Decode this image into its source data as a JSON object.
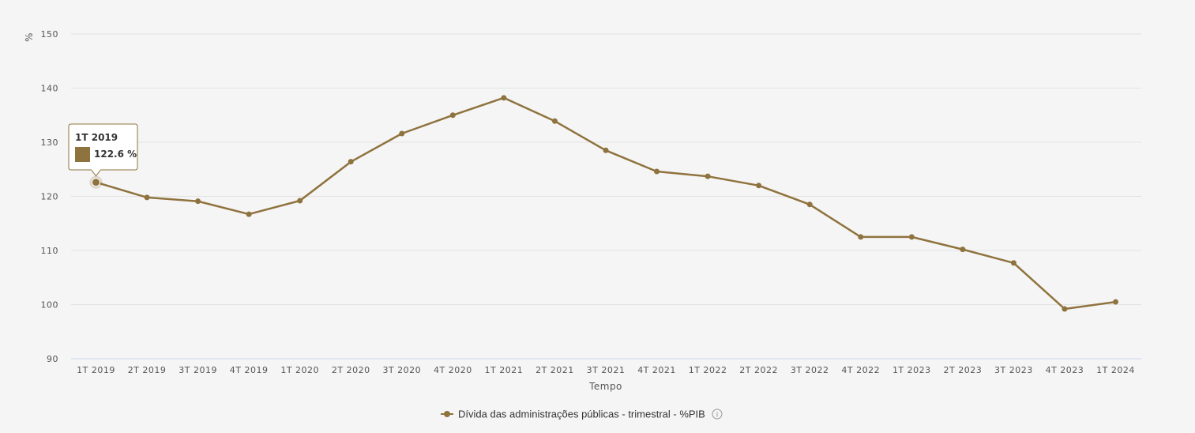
{
  "chart_data": {
    "type": "line",
    "title": "",
    "xlabel": "Tempo",
    "ylabel": "%",
    "ylim": [
      90,
      150
    ],
    "yticks": [
      90,
      100,
      110,
      120,
      130,
      140,
      150
    ],
    "grid": true,
    "legend_position": "bottom-center",
    "categories": [
      "1T 2019",
      "2T 2019",
      "3T 2019",
      "4T 2019",
      "1T 2020",
      "2T 2020",
      "3T 2020",
      "4T 2020",
      "1T 2021",
      "2T 2021",
      "3T 2021",
      "4T 2021",
      "1T 2022",
      "2T 2022",
      "3T 2022",
      "4T 2022",
      "1T 2023",
      "2T 2023",
      "3T 2023",
      "4T 2023",
      "1T 2024"
    ],
    "series": [
      {
        "name": "Dívida das administrações públicas - trimestral - %PIB",
        "color": "#8f733e",
        "values": [
          122.6,
          119.8,
          119.1,
          116.7,
          119.2,
          126.4,
          131.6,
          135.0,
          138.2,
          133.9,
          128.5,
          124.6,
          123.7,
          122.0,
          118.5,
          112.5,
          112.5,
          110.2,
          107.7,
          99.2,
          100.5
        ]
      }
    ],
    "tooltip": {
      "index": 0,
      "title": "1T 2019",
      "value": "122.6 %"
    }
  },
  "legend": {
    "info_icon": "info-icon",
    "info_glyph": "i"
  },
  "colors": {
    "series": "#8f733e",
    "grid": "#e3e3e3",
    "axis_line": "#ccd6eb",
    "background": "#f5f5f5"
  }
}
